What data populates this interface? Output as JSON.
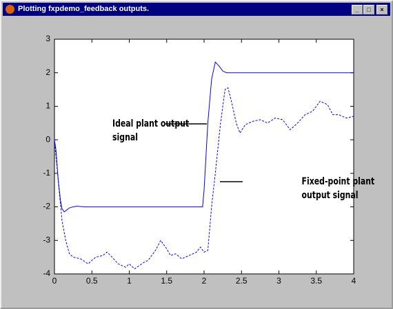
{
  "window": {
    "title": "Plotting fxpdemo_feedback outputs."
  },
  "chart_data": {
    "type": "line",
    "xlim": [
      0,
      4
    ],
    "ylim": [
      -4,
      3
    ],
    "xticks": [
      0,
      0.5,
      1,
      1.5,
      2,
      2.5,
      3,
      3.5,
      4
    ],
    "yticks": [
      -4,
      -3,
      -2,
      -1,
      0,
      1,
      2,
      3
    ],
    "series": [
      {
        "name": "Ideal plant output signal",
        "color": "#0000ff",
        "dash": false,
        "x": [
          0,
          0.02,
          0.05,
          0.08,
          0.1,
          0.13,
          0.16,
          0.2,
          0.25,
          0.3,
          0.4,
          0.5,
          1,
          1.5,
          1.98,
          2.0,
          2.05,
          2.1,
          2.15,
          2.2,
          2.25,
          2.3,
          2.4,
          2.5,
          3,
          3.5,
          4
        ],
        "values": [
          0,
          -0.3,
          -1.2,
          -1.8,
          -2.05,
          -2.15,
          -2.1,
          -2.03,
          -2.0,
          -1.98,
          -2,
          -2,
          -2,
          -2,
          -2,
          -1.5,
          0.5,
          1.8,
          2.32,
          2.2,
          2.05,
          2.0,
          2.0,
          2,
          2,
          2,
          2
        ]
      },
      {
        "name": "Fixed-point plant output signal",
        "color": "#0000ff",
        "dash": true,
        "x": [
          0,
          0.05,
          0.1,
          0.15,
          0.2,
          0.25,
          0.35,
          0.45,
          0.55,
          0.65,
          0.7,
          0.75,
          0.85,
          0.9,
          0.95,
          1.0,
          1.07,
          1.2,
          1.25,
          1.35,
          1.42,
          1.5,
          1.55,
          1.62,
          1.7,
          1.8,
          1.9,
          1.95,
          2.0,
          2.05,
          2.1,
          2.15,
          2.22,
          2.28,
          2.32,
          2.37,
          2.43,
          2.48,
          2.55,
          2.65,
          2.75,
          2.85,
          2.95,
          3.05,
          3.15,
          3.25,
          3.35,
          3.45,
          3.55,
          3.65,
          3.72,
          3.8,
          3.9,
          4
        ],
        "values": [
          0,
          -1.2,
          -2.4,
          -3.0,
          -3.4,
          -3.5,
          -3.55,
          -3.7,
          -3.5,
          -3.45,
          -3.35,
          -3.45,
          -3.7,
          -3.75,
          -3.8,
          -3.7,
          -3.85,
          -3.65,
          -3.6,
          -3.3,
          -3.0,
          -3.25,
          -3.45,
          -3.4,
          -3.55,
          -3.45,
          -3.35,
          -3.2,
          -3.35,
          -3.3,
          -2.0,
          -1.0,
          0.5,
          1.5,
          1.55,
          1.1,
          0.5,
          0.2,
          0.45,
          0.55,
          0.6,
          0.5,
          0.65,
          0.6,
          0.3,
          0.5,
          0.75,
          0.85,
          1.15,
          1.05,
          0.75,
          0.75,
          0.65,
          0.7
        ]
      }
    ],
    "annotations": [
      {
        "lines": [
          "Ideal plant output",
          "signal"
        ]
      },
      {
        "lines": [
          "Fixed-point plant",
          "output signal"
        ]
      }
    ]
  }
}
